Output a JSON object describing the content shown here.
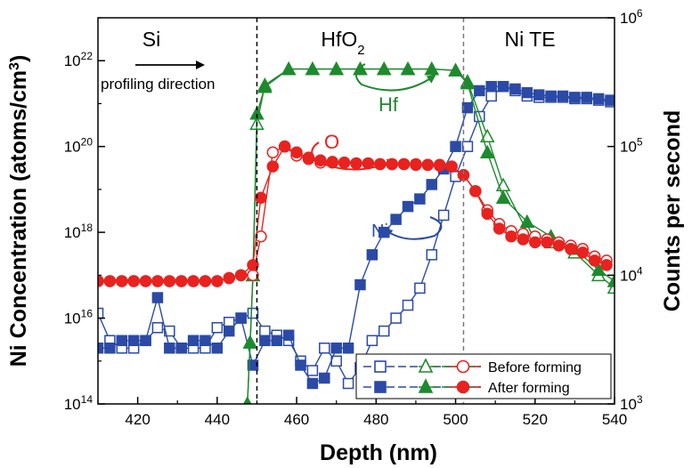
{
  "chart_data": {
    "type": "scatter",
    "xlabel": "Depth (nm)",
    "ylabel_left": "Ni Concentration (atoms/cm3)",
    "ylabel_right": "Counts per second",
    "xlim": [
      410,
      540
    ],
    "xticks": [
      420,
      440,
      460,
      480,
      500,
      520,
      540
    ],
    "ylim_left": [
      100000000000000.0,
      1e+23
    ],
    "yscale_left": "log",
    "yticks_left": [
      {
        "mant": "10",
        "exp": "14"
      },
      {
        "mant": "10",
        "exp": "16"
      },
      {
        "mant": "10",
        "exp": "18"
      },
      {
        "mant": "10",
        "exp": "20"
      },
      {
        "mant": "10",
        "exp": "22"
      }
    ],
    "ylim_right": [
      1000,
      1000000
    ],
    "yscale_right": "log",
    "yticks_right": [
      {
        "mant": "10",
        "exp": "3"
      },
      {
        "mant": "10",
        "exp": "4"
      },
      {
        "mant": "10",
        "exp": "5"
      },
      {
        "mant": "10",
        "exp": "6"
      }
    ],
    "interfaces": [
      450,
      502
    ],
    "regions": [
      {
        "label": "Si",
        "sub": ""
      },
      {
        "label": "HfO",
        "sub": "2"
      },
      {
        "label": "Ni TE",
        "sub": ""
      }
    ],
    "annotations": {
      "profiling": "profiling direction",
      "hf": "Hf",
      "o": "O",
      "ni": "Ni"
    },
    "legend": {
      "position": "bottom-right",
      "entries": [
        "Before forming",
        "After forming"
      ]
    },
    "colors": {
      "ni": "#2b4aa6",
      "hf": "#1e8a2e",
      "o": "#e8221f"
    },
    "series": [
      {
        "species": "Ni",
        "state": "Before forming",
        "marker": "square-open",
        "axis": "left",
        "x": [
          410,
          413,
          416,
          419,
          422,
          425,
          428,
          431,
          434,
          437,
          440,
          443,
          446,
          449,
          452,
          455,
          458,
          461,
          464,
          467,
          470,
          473,
          476,
          479,
          482,
          485,
          488,
          491,
          494,
          497,
          500,
          503,
          506,
          509,
          512,
          515,
          518,
          521,
          524,
          527,
          530,
          533,
          536,
          539
        ],
        "y": [
          1.3e+16,
          3000000000000000.0,
          2000000000000000.0,
          2000000000000000.0,
          3000000000000000.0,
          6000000000000000.0,
          5000000000000000.0,
          2000000000000000.0,
          2000000000000000.0,
          2000000000000000.0,
          6000000000000000.0,
          8000000000000000.0,
          1e+16,
          1.3e+16,
          5000000000000000.0,
          4000000000000000.0,
          3000000000000000.0,
          1000000000000000.0,
          600000000000000.0,
          2000000000000000.0,
          1000000000000000.0,
          300000000000000.0,
          700000000000000.0,
          3000000000000000.0,
          5000000000000000.0,
          1e+16,
          2e+16,
          5e+16,
          3e+17,
          2.5e+18,
          2e+19,
          1e+20,
          5e+20,
          1.5e+21,
          2.5e+21,
          2e+21,
          1.5e+21,
          1.4e+21,
          1.4e+21,
          1.4e+21,
          1.3e+21,
          1.3e+21,
          1.2e+21,
          1.1e+21
        ]
      },
      {
        "species": "Ni",
        "state": "After forming",
        "marker": "square-filled",
        "axis": "left",
        "x": [
          410,
          413,
          416,
          419,
          422,
          425,
          428,
          431,
          434,
          437,
          440,
          443,
          446,
          449,
          452,
          455,
          458,
          461,
          464,
          467,
          470,
          473,
          476,
          479,
          482,
          485,
          488,
          491,
          494,
          497,
          500,
          503,
          506,
          509,
          512,
          515,
          518,
          521,
          524,
          527,
          530,
          533,
          536,
          539
        ],
        "y": [
          2000000000000000.0,
          2000000000000000.0,
          3000000000000000.0,
          3000000000000000.0,
          3000000000000000.0,
          3e+16,
          2000000000000000.0,
          2000000000000000.0,
          3000000000000000.0,
          3000000000000000.0,
          2000000000000000.0,
          5000000000000000.0,
          1e+16,
          800000000000000.0,
          3000000000000000.0,
          3000000000000000.0,
          4000000000000000.0,
          800000000000000.0,
          300000000000000.0,
          400000000000000.0,
          2000000000000000.0,
          2000000000000000.0,
          6e+16,
          3e+17,
          1e+18,
          2e+18,
          4e+18,
          6e+18,
          1.3e+19,
          3e+19,
          1e+20,
          8e+20,
          2e+21,
          2.5e+21,
          2.5e+21,
          2.2e+21,
          1.8e+21,
          1.6e+21,
          1.5e+21,
          1.5e+21,
          1.4e+21,
          1.4e+21,
          1.3e+21,
          1.2e+21
        ]
      },
      {
        "species": "Hf",
        "state": "Before forming",
        "marker": "triangle-open",
        "axis": "right",
        "x": [
          447.6,
          448.3,
          449,
          450,
          452,
          458,
          464,
          470,
          476,
          482,
          488,
          494,
          500,
          503,
          508,
          512,
          518,
          524,
          530,
          536,
          540
        ],
        "y": [
          1000,
          3000,
          10000,
          150000,
          300000,
          400000,
          400000,
          400000,
          400000,
          400000,
          400000,
          400000,
          390000,
          320000,
          120000,
          50000,
          22000,
          18000,
          15000,
          10000,
          8000
        ]
      },
      {
        "species": "Hf",
        "state": "After forming",
        "marker": "triangle-filled",
        "axis": "right",
        "x": [
          447.6,
          448.3,
          449,
          450,
          452,
          458,
          464,
          470,
          476,
          482,
          488,
          494,
          500,
          503,
          508,
          512,
          518,
          524,
          530,
          536,
          540
        ],
        "y": [
          1000,
          3000,
          10000,
          180000,
          290000,
          400000,
          400000,
          400000,
          400000,
          400000,
          400000,
          400000,
          390000,
          310000,
          90000,
          40000,
          26000,
          20000,
          16000,
          11000,
          9000
        ]
      },
      {
        "species": "O",
        "state": "Before forming",
        "marker": "circle-open",
        "axis": "right",
        "x": [
          410,
          413,
          416,
          419,
          422,
          425,
          428,
          431,
          434,
          437,
          440,
          443,
          446,
          449,
          451,
          454,
          457,
          460,
          463,
          466,
          469,
          472,
          475,
          478,
          481,
          484,
          487,
          490,
          493,
          496,
          499,
          502,
          505,
          508,
          511,
          514,
          517,
          520,
          523,
          526,
          529,
          532,
          535,
          538
        ],
        "y": [
          9000,
          9000,
          9000,
          9000,
          9000,
          9000,
          9000,
          9000,
          9000,
          9000,
          9000,
          9500,
          10000,
          10000,
          20000,
          90000,
          100000,
          85000,
          80000,
          75000,
          75000,
          75000,
          74000,
          74000,
          73000,
          73000,
          73000,
          73000,
          72000,
          72000,
          70000,
          60000,
          45000,
          32000,
          25000,
          22000,
          21000,
          20000,
          19000,
          18000,
          17000,
          16000,
          14000,
          13000
        ]
      },
      {
        "species": "O",
        "state": "After forming",
        "marker": "circle-filled",
        "axis": "right",
        "x": [
          410,
          413,
          416,
          419,
          422,
          425,
          428,
          431,
          434,
          437,
          440,
          443,
          446,
          449,
          451,
          454,
          457,
          460,
          463,
          466,
          469,
          472,
          475,
          478,
          481,
          484,
          487,
          490,
          493,
          496,
          499,
          502,
          505,
          508,
          511,
          514,
          517,
          520,
          523,
          526,
          529,
          532,
          535,
          538
        ],
        "y": [
          9000,
          9000,
          9000,
          9000,
          9000,
          9000,
          9000,
          9000,
          9000,
          9000,
          9000,
          9500,
          10000,
          12000,
          40000,
          70000,
          100000,
          90000,
          82000,
          78000,
          76000,
          75000,
          74000,
          74000,
          73000,
          73000,
          73000,
          72000,
          72000,
          71000,
          70000,
          60000,
          45000,
          30000,
          23000,
          20000,
          19000,
          18000,
          18000,
          17000,
          16000,
          15000,
          13000,
          12000
        ]
      }
    ]
  }
}
